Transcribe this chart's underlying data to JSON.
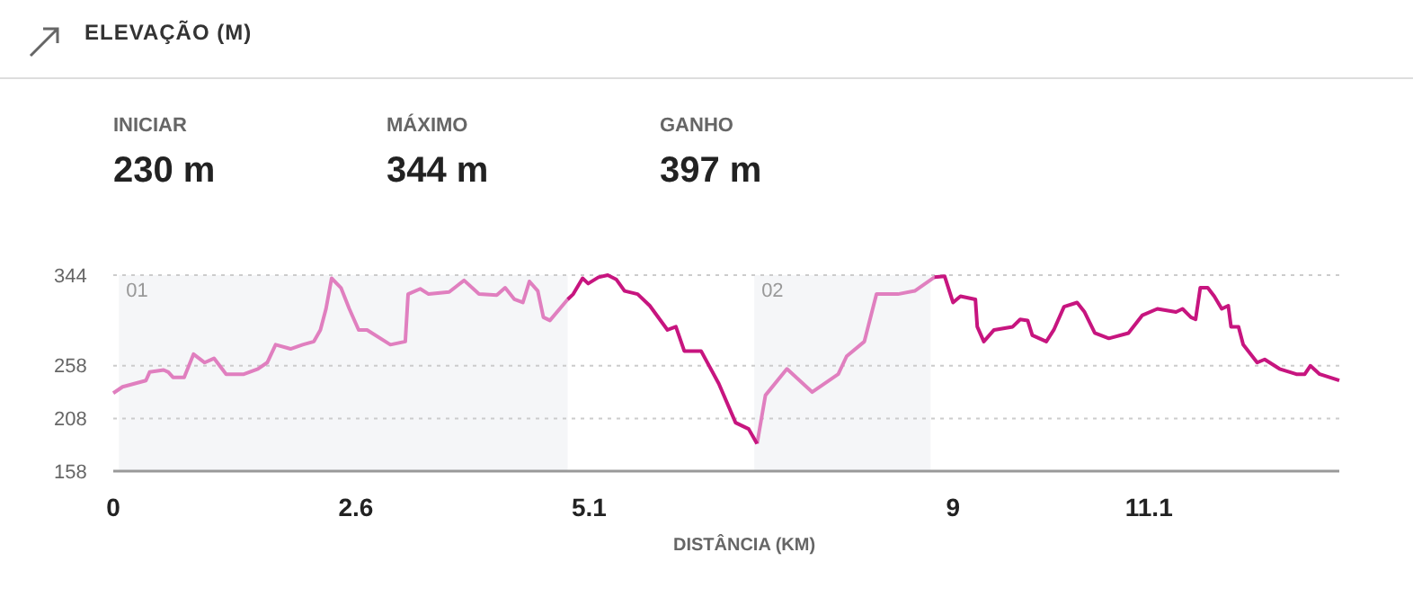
{
  "chart_data": {
    "type": "line",
    "title": "ELEVAÇÃO (M)",
    "xlabel": "DISTÂNCIA (KM)",
    "annotations": [
      "INICIAR",
      "230 m",
      "MÁXIMO",
      "344 m",
      "GANHO",
      "397 m"
    ],
    "xlim": [
      0,
      13.14
    ],
    "ylim": [
      158,
      344
    ],
    "xticks": [
      0,
      2.6,
      5.1,
      9,
      11.1
    ],
    "yticks": [
      158,
      208,
      258,
      344
    ],
    "grid": "y",
    "line_style": "solid",
    "marker": "none",
    "bands": [
      {
        "axis": "x",
        "from": 0.06,
        "to": 4.87,
        "label": "01",
        "color": "#f5f6f8"
      },
      {
        "axis": "x",
        "from": 6.87,
        "to": 8.76,
        "label": "02",
        "color": "#f5f6f8"
      }
    ],
    "series": [
      {
        "color": "#e07fbf",
        "x": [
          0,
          0.1,
          0.35,
          0.39,
          0.54,
          0.59,
          0.64,
          0.76,
          0.86,
          0.98,
          1.08,
          1.21,
          1.4,
          1.55,
          1.65,
          1.74,
          1.9,
          2.03,
          2.15,
          2.22,
          2.28,
          2.34,
          2.44,
          2.53,
          2.63,
          2.72,
          2.97,
          3.13,
          3.16,
          3.29,
          3.38,
          3.6,
          3.76,
          3.92,
          4.11,
          4.2,
          4.3,
          4.39,
          4.46,
          4.55,
          4.61,
          4.68,
          4.87,
          5.67,
          6.9,
          6.99,
          7.22,
          7.49,
          7.77,
          7.86,
          8.05,
          8.18,
          8.41,
          8.59,
          8.8
        ],
        "values": [
          232,
          238,
          244,
          252,
          254,
          252,
          247,
          247,
          269,
          261,
          265,
          250,
          250,
          255,
          261,
          278,
          274,
          278,
          281,
          292,
          312,
          341,
          332,
          312,
          292,
          292,
          278,
          281,
          326,
          331,
          326,
          328,
          339,
          326,
          325,
          332,
          321,
          318,
          338,
          329,
          304,
          301,
          321,
          null,
          184,
          230,
          255,
          233,
          250,
          267,
          281,
          326,
          326,
          329,
          342
        ]
      },
      {
        "color": "#c7157f",
        "x": [
          4.87,
          4.93,
          5.03,
          5.09,
          5.2,
          5.3,
          5.39,
          5.48,
          5.62,
          5.75,
          5.94,
          6.03,
          6.12,
          6.3,
          6.49,
          6.67,
          6.81,
          6.9,
          7.84,
          8.8,
          8.91,
          9,
          9.08,
          9.24,
          9.26,
          9.33,
          9.44,
          9.64,
          9.72,
          9.8,
          9.85,
          10,
          10.08,
          10.19,
          10.33,
          10.41,
          10.52,
          10.67,
          10.88,
          11.03,
          11.19,
          11.39,
          11.46,
          11.55,
          11.6,
          11.65,
          11.73,
          11.8,
          11.88,
          11.95,
          11.98,
          12.06,
          12.11,
          12.26,
          12.34,
          12.5,
          12.68,
          12.77,
          12.83,
          12.93,
          13.14
        ],
        "values": [
          321,
          326,
          341,
          336,
          342,
          344,
          340,
          329,
          326,
          315,
          292,
          295,
          272,
          272,
          241,
          204,
          198,
          184,
          null,
          342,
          343,
          318,
          324,
          321,
          295,
          281,
          292,
          295,
          302,
          301,
          287,
          281,
          292,
          314,
          318,
          309,
          289,
          284,
          289,
          306,
          312,
          309,
          312,
          304,
          302,
          332,
          332,
          324,
          312,
          315,
          295,
          295,
          278,
          261,
          264,
          255,
          250,
          250,
          258,
          250,
          244
        ]
      }
    ]
  }
}
